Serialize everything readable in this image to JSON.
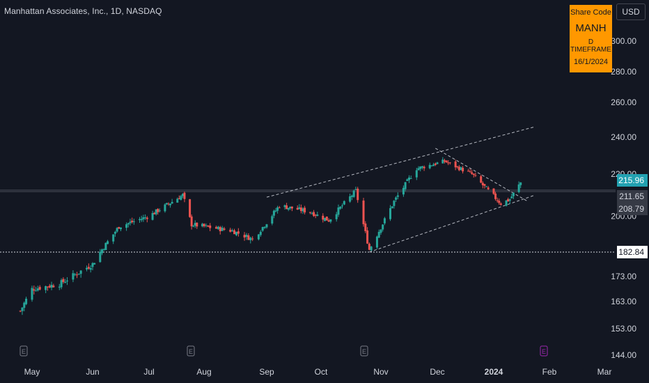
{
  "header": {
    "title": "Manhattan Associates, Inc., 1D, NASDAQ",
    "currency": "USD"
  },
  "info_box": {
    "line1": "Share Code",
    "line2": "MANH",
    "line3": "D TIMEFRAME",
    "line4": "16/1/2024"
  },
  "colors": {
    "background": "#131722",
    "up": "#26a69a",
    "down": "#ef5350",
    "accent_badge": "#ff9800",
    "current_price_badge": "#22a1b1",
    "grid_line": "#363a45",
    "trendline": "#d1d4dc"
  },
  "icons": [
    "earnings-e-icon",
    "earnings-e-icon",
    "earnings-e-icon",
    "earnings-e-icon-upcoming"
  ],
  "chart_data": {
    "type": "candlestick",
    "title": "Manhattan Associates, Inc., 1D, NASDAQ",
    "xlabel": "",
    "ylabel": "",
    "x_tick_labels": [
      "May",
      "Jun",
      "Jul",
      "Aug",
      "Sep",
      "Oct",
      "Nov",
      "Dec",
      "2024",
      "Feb",
      "Mar"
    ],
    "y_tick_labels": [
      "300.00",
      "280.00",
      "260.00",
      "240.00",
      "220.00",
      "200.00",
      "173.00",
      "163.00",
      "153.00",
      "144.00"
    ],
    "price_labels": [
      {
        "value": 215.96,
        "text": "215.96",
        "style": "current"
      },
      {
        "value": 211.65,
        "text": "211.65",
        "style": "dark"
      },
      {
        "value": 208.79,
        "text": "208.79",
        "style": "dark"
      },
      {
        "value": 182.84,
        "text": "182.84",
        "style": "light"
      }
    ],
    "horizontal_levels": [
      211.65,
      182.84
    ],
    "trendlines": [
      {
        "name": "upper channel",
        "from": [
          "2023-09-01",
          209
        ],
        "to": [
          "2024-01-24",
          246
        ]
      },
      {
        "name": "lower channel",
        "from": [
          "2023-10-26",
          182.84
        ],
        "to": [
          "2024-01-24",
          210
        ]
      },
      {
        "name": "descending resistance",
        "from": [
          "2023-11-30",
          234
        ],
        "to": [
          "2024-01-20",
          207
        ]
      }
    ],
    "closes": [
      {
        "date": "2023-04-25",
        "close": 159.5
      },
      {
        "date": "2023-05-01",
        "close": 168.0
      },
      {
        "date": "2023-05-15",
        "close": 170.0
      },
      {
        "date": "2023-06-01",
        "close": 178.0
      },
      {
        "date": "2023-06-15",
        "close": 195.0
      },
      {
        "date": "2023-07-01",
        "close": 200.0
      },
      {
        "date": "2023-07-20",
        "close": 210.0
      },
      {
        "date": "2023-07-25",
        "close": 196.0
      },
      {
        "date": "2023-08-15",
        "close": 193.0
      },
      {
        "date": "2023-08-25",
        "close": 189.0
      },
      {
        "date": "2023-09-08",
        "close": 205.0
      },
      {
        "date": "2023-09-25",
        "close": 202.0
      },
      {
        "date": "2023-10-05",
        "close": 198.0
      },
      {
        "date": "2023-10-19",
        "close": 212.0
      },
      {
        "date": "2023-10-26",
        "close": 184.0
      },
      {
        "date": "2023-11-08",
        "close": 207.0
      },
      {
        "date": "2023-11-20",
        "close": 223.0
      },
      {
        "date": "2023-12-05",
        "close": 227.0
      },
      {
        "date": "2023-12-20",
        "close": 220.0
      },
      {
        "date": "2024-01-05",
        "close": 206.0
      },
      {
        "date": "2024-01-10",
        "close": 208.0
      },
      {
        "date": "2024-01-16",
        "close": 215.96
      }
    ]
  }
}
